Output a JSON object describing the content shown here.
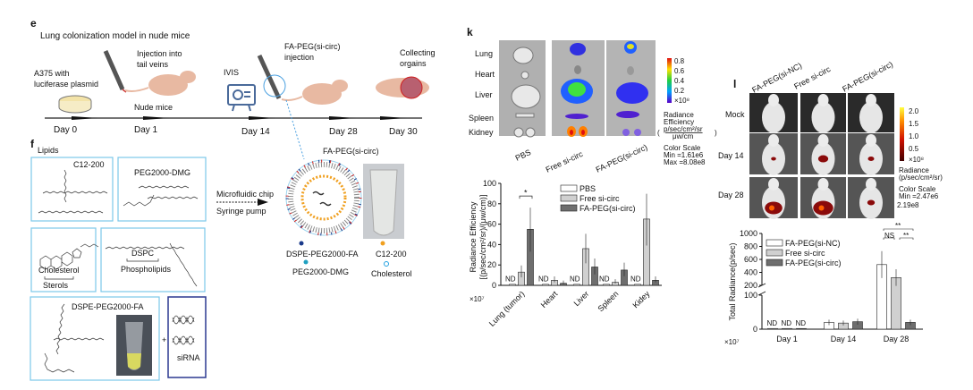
{
  "panel_e": {
    "letter": "e",
    "title": "Lung colonization model in nude mice",
    "a375": [
      "A375 with",
      "luciferase plasmid"
    ],
    "injection": [
      "Injection into",
      "tail veins"
    ],
    "nude_mice": "Nude mice",
    "ivis": "IVIS",
    "fa_injection": [
      "FA-PEG(si-circ)",
      "injection"
    ],
    "collecting": [
      "Collecting",
      "orgains"
    ],
    "days": [
      "Day 0",
      "Day 1",
      "Day 14",
      "Day 28",
      "Day 30"
    ]
  },
  "panel_f": {
    "letter": "f",
    "lipids": "Lipids",
    "c12": "C12-200",
    "peg_dmg": "PEG2000-DMG",
    "cholesterol": "Cholesterol",
    "sterols": "Sterols",
    "dspc": "DSPC",
    "phospholipids": "Phospholipids",
    "dspe": "DSPE-PEG2000-FA",
    "plus": "+",
    "sirna": "siRNA",
    "microfluidic": "Microfluidic chip",
    "syringe": "Syringe pump",
    "np_title": "FA-PEG(si-circ)",
    "legend": [
      "DSPE-PEG2000-FA",
      "PEG2000-DMG",
      "C12-200",
      "Cholesterol"
    ]
  },
  "panel_k": {
    "letter": "k",
    "organs": [
      "Lung",
      "Heart",
      "Liver",
      "Spleen",
      "Kidney"
    ],
    "groups": [
      "PBS",
      "Free si-circ",
      "FA-PEG(si-circ)"
    ],
    "colorbar_ticks": [
      "0.8",
      "0.6",
      "0.4",
      "0.2",
      "×10⁸"
    ],
    "radiance": [
      "Radiance",
      "Efficiency"
    ],
    "unit_num": "p/sec/cm²/sr",
    "unit_den": "μw/cm",
    "paren": "(",
    "paren_close": ")",
    "color_scale": "Color Scale",
    "min": "Min =1.61e6",
    "max": "Max =8.08e8"
  },
  "panel_l": {
    "letter": "l",
    "columns": [
      "FA-PEG(si-NC)",
      "Free si-circ",
      "FA-PEG(si-circ)"
    ],
    "rows": [
      "Mock",
      "Day 14",
      "Day 28"
    ],
    "colorbar_ticks": [
      "2.0",
      "1.5",
      "1.0",
      "0.5",
      "×10⁸"
    ],
    "radiance": [
      "Radiance",
      "(p/sec/cm²/sr)"
    ],
    "color_scale": "Color Scale",
    "min": "Min =2.47e6",
    "max": "2.19e8"
  },
  "colors": {
    "pbs": "#ffffff",
    "free": "#d0d0d0",
    "fa": "#6e6e6e",
    "box": "#7cc8ea",
    "sirna_box": "#2b3990"
  },
  "chart_data": [
    {
      "type": "bar",
      "title": "",
      "ylabel": [
        "Radiance Efficiency",
        "[(p/sec/cm²/sr)/(μw/cm)]"
      ],
      "yscale_note": "×10⁷",
      "ylim": [
        0,
        100
      ],
      "yticks": [
        "0",
        "20",
        "40",
        "60",
        "80",
        "100"
      ],
      "categories": [
        "Lung (tumor)",
        "Heart",
        "Liver",
        "Spleen",
        "Kidey"
      ],
      "series": [
        {
          "name": "PBS",
          "values": [
            1,
            1,
            1,
            1,
            1
          ]
        },
        {
          "name": "Free si-circ",
          "values": [
            13,
            5,
            36,
            3,
            65
          ]
        },
        {
          "name": "FA-PEG(si-circ)",
          "values": [
            55,
            2,
            18,
            15,
            5
          ]
        }
      ],
      "nd_label": "ND",
      "significance": "*",
      "legend_position": "top-right"
    },
    {
      "type": "bar",
      "ylabel": "Total Radiance(p/sec)",
      "yscale_note": "×10⁷",
      "ylim": [
        0,
        1000
      ],
      "axis_break": [
        100,
        200
      ],
      "yticks": [
        "0",
        "100",
        "200",
        "400",
        "600",
        "800",
        "1000"
      ],
      "categories": [
        "Day 1",
        "Day 14",
        "Day 28"
      ],
      "series": [
        {
          "name": "FA-PEG(si-NC)",
          "values": [
            2,
            20,
            520
          ]
        },
        {
          "name": "Free si-circ",
          "values": [
            2,
            18,
            320
          ]
        },
        {
          "name": "FA-PEG(si-circ)",
          "values": [
            2,
            22,
            20
          ]
        }
      ],
      "nd_label": "ND",
      "significance": [
        "NS",
        "**",
        "**"
      ],
      "legend_position": "top-left"
    }
  ]
}
